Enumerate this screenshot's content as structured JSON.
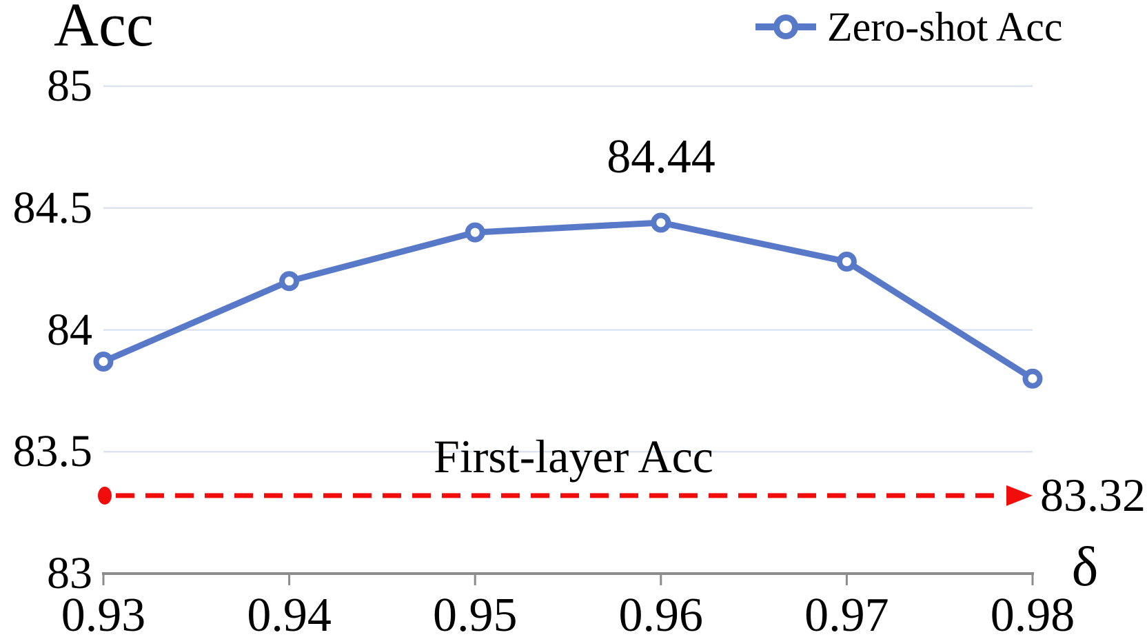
{
  "title": "Acc",
  "legend": {
    "series1_label": "Zero-shot Acc"
  },
  "axis": {
    "x_label": "δ",
    "x_ticks": [
      "0.93",
      "0.94",
      "0.95",
      "0.96",
      "0.97",
      "0.98"
    ],
    "y_ticks": [
      "85",
      "84.5",
      "84",
      "83.5",
      "83"
    ]
  },
  "annotations": {
    "peak_value": "84.44",
    "baseline_name": "First-layer Acc",
    "baseline_value": "83.32"
  },
  "colors": {
    "series_blue": "#5878C8",
    "baseline_red": "#F20D0D",
    "gridline": "#DCE3F0",
    "axis": "#8C8C8C"
  },
  "chart_data": {
    "type": "line",
    "title": "Acc",
    "xlabel": "δ",
    "ylabel": "Acc",
    "x": [
      0.93,
      0.94,
      0.95,
      0.96,
      0.97,
      0.98
    ],
    "series": [
      {
        "name": "Zero-shot Acc",
        "values": [
          83.87,
          84.2,
          84.4,
          84.44,
          84.28,
          83.8
        ],
        "color": "#5878C8",
        "marker": "open-circle",
        "style": "solid"
      },
      {
        "name": "First-layer Acc",
        "values": [
          83.32,
          83.32,
          83.32,
          83.32,
          83.32,
          83.32
        ],
        "color": "#F20D0D",
        "marker": "none",
        "style": "dashed-arrow"
      }
    ],
    "ylim": [
      83,
      85
    ],
    "yticks": [
      85,
      84.5,
      84,
      83.5,
      83
    ],
    "grid": true,
    "legend_position": "top-right",
    "annotations": [
      {
        "text": "84.44",
        "x": 0.96,
        "anchor": "above-point"
      },
      {
        "text": "First-layer Acc",
        "x": 0.955,
        "anchor": "above-baseline"
      },
      {
        "text": "83.32",
        "anchor": "right-of-baseline"
      }
    ]
  }
}
